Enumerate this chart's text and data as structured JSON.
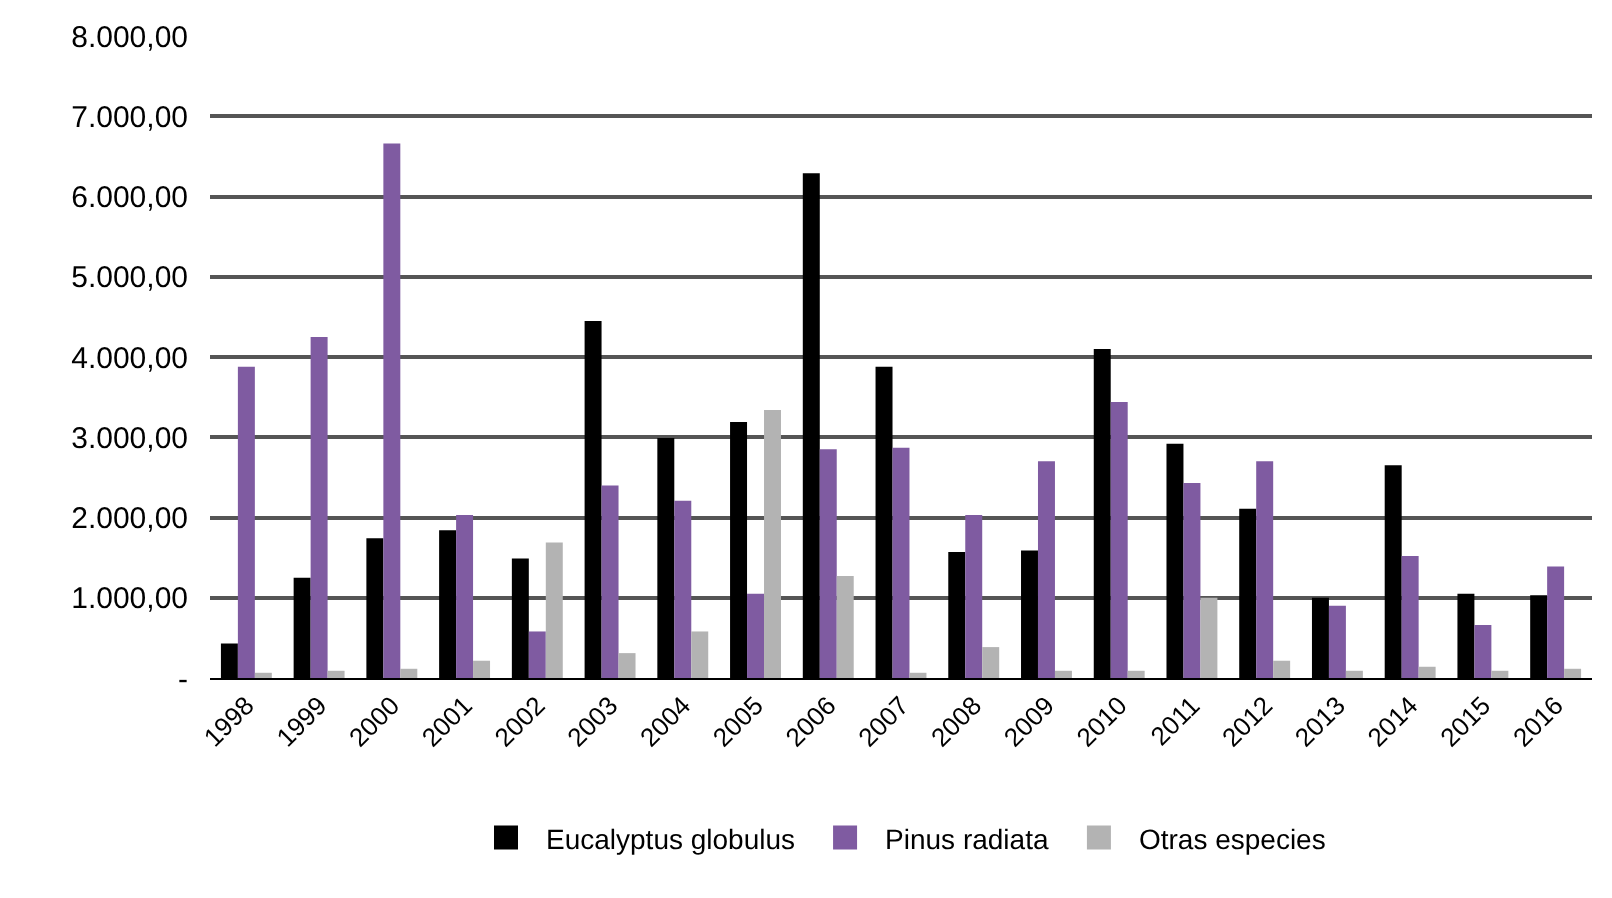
{
  "chart_data": {
    "type": "bar",
    "categories": [
      "1998",
      "1999",
      "2000",
      "2001",
      "2002",
      "2003",
      "2004",
      "2005",
      "2006",
      "2007",
      "2008",
      "2009",
      "2010",
      "2011",
      "2012",
      "2013",
      "2014",
      "2015",
      "2016"
    ],
    "series": [
      {
        "name": "Eucalyptus globulus",
        "color": "#000000",
        "values": [
          430,
          1250,
          1740,
          1840,
          1490,
          4450,
          2990,
          3190,
          6290,
          3880,
          1570,
          1590,
          4100,
          2920,
          2110,
          1000,
          2650,
          1050,
          1030
        ]
      },
      {
        "name": "Pinus radiata",
        "color": "#7f5ba1",
        "values": [
          3880,
          4250,
          6660,
          2030,
          580,
          2400,
          2210,
          1050,
          2850,
          2870,
          2030,
          2700,
          3440,
          2430,
          2700,
          900,
          1520,
          660,
          1390
        ]
      },
      {
        "name": "Otras especies",
        "color": "#b3b3b3",
        "values": [
          65,
          90,
          115,
          215,
          1690,
          310,
          580,
          3340,
          1270,
          65,
          385,
          90,
          90,
          1000,
          215,
          90,
          140,
          90,
          115
        ]
      }
    ],
    "ylim": [
      0,
      8000
    ],
    "yticks": [
      {
        "value": 0,
        "label": "-"
      },
      {
        "value": 1000,
        "label": "1.000,00"
      },
      {
        "value": 2000,
        "label": "2.000,00"
      },
      {
        "value": 3000,
        "label": "3.000,00"
      },
      {
        "value": 4000,
        "label": "4.000,00"
      },
      {
        "value": 5000,
        "label": "5.000,00"
      },
      {
        "value": 6000,
        "label": "6.000,00"
      },
      {
        "value": 7000,
        "label": "7.000,00"
      },
      {
        "value": 8000,
        "label": "8.000,00"
      }
    ],
    "grid": "y",
    "legend": "bottom"
  }
}
